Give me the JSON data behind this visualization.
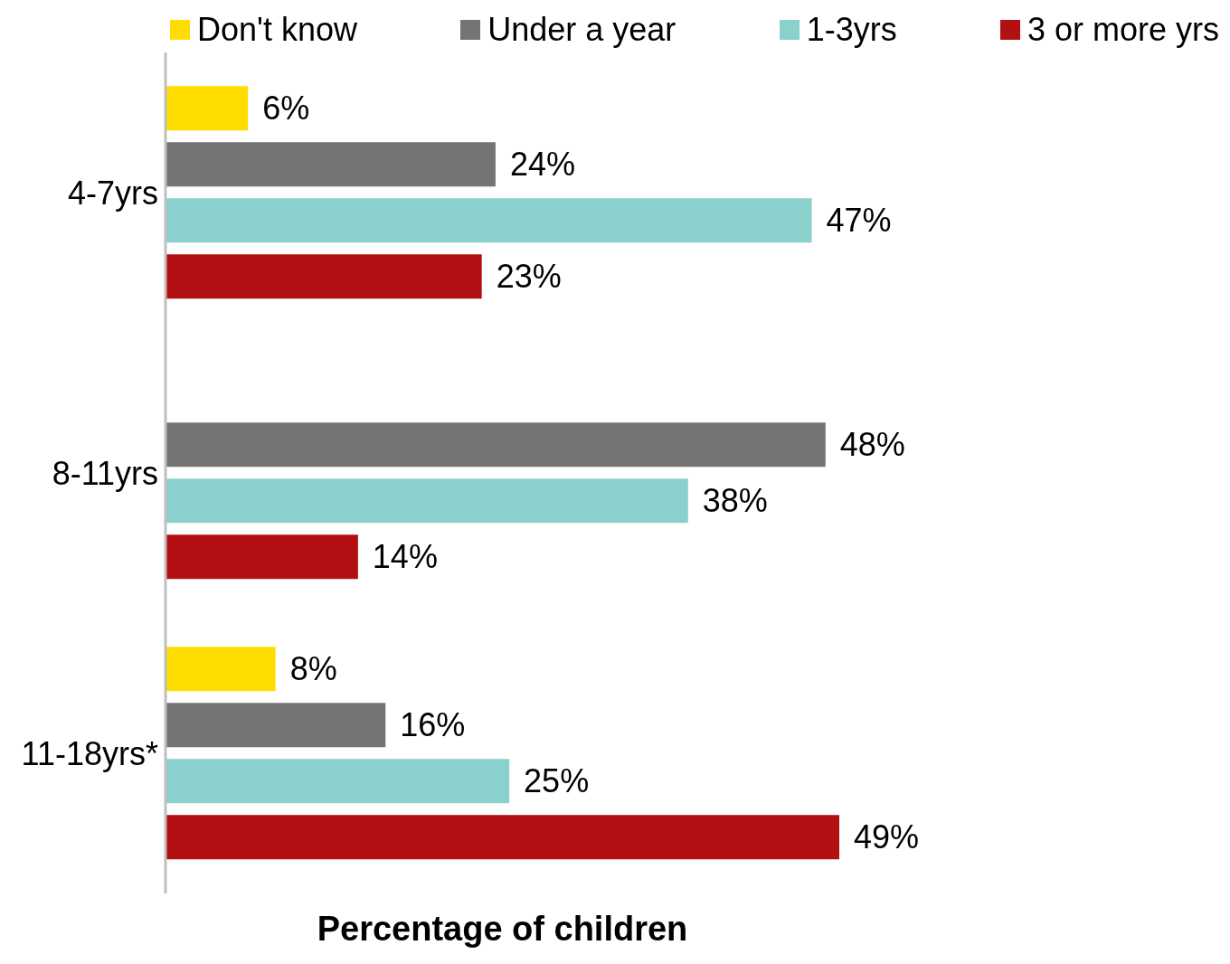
{
  "chart_data": {
    "type": "bar",
    "orientation": "horizontal",
    "categories": [
      "4-7yrs",
      "8-11yrs",
      "11-18yrs*"
    ],
    "series": [
      {
        "name": "Don't know",
        "color": "#ffdd00",
        "values": [
          6,
          null,
          8
        ],
        "value_labels": [
          "6%",
          null,
          "8%"
        ]
      },
      {
        "name": "Under a year",
        "color": "#747474",
        "values": [
          24,
          48,
          16
        ],
        "value_labels": [
          "24%",
          "48%",
          "16%"
        ]
      },
      {
        "name": "1-3yrs",
        "color": "#8ad1ce",
        "values": [
          47,
          38,
          25
        ],
        "value_labels": [
          "47%",
          "38%",
          "25%"
        ]
      },
      {
        "name": "3 or more yrs",
        "color": "#b21013",
        "values": [
          23,
          14,
          49
        ],
        "value_labels": [
          "23%",
          "14%",
          "49%"
        ]
      }
    ],
    "xlabel": "Percentage of children",
    "tick_labels": "y",
    "legend": "top",
    "grid": false
  }
}
